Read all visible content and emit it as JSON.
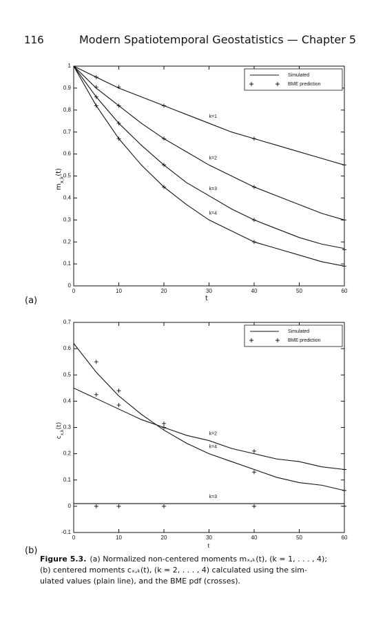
{
  "header": {
    "page_number": "116",
    "title": "Modern Spatiotemporal Geostatistics — Chapter 5"
  },
  "chart_data": [
    {
      "type": "line",
      "panel": "(a)",
      "xlabel": "t",
      "ylabel": {
        "base": "m",
        "sub": "x,k",
        "tail": "(t)"
      },
      "xlim": [
        0,
        60
      ],
      "ylim": [
        0,
        1
      ],
      "xticks": [
        0,
        10,
        20,
        30,
        40,
        50,
        60
      ],
      "yticks": [
        0,
        0.1,
        0.2,
        0.3,
        0.4,
        0.5,
        0.6,
        0.7,
        0.8,
        0.9,
        1
      ],
      "legend": "upper right",
      "series": [
        {
          "name": "Simulated",
          "color": "#111",
          "x": [
            0,
            5,
            10,
            15,
            20,
            25,
            30,
            35,
            40,
            45,
            50,
            55,
            60
          ],
          "curves": [
            {
              "label": "k=1",
              "values": [
                1,
                0.95,
                0.9,
                0.86,
                0.82,
                0.78,
                0.74,
                0.7,
                0.67,
                0.64,
                0.61,
                0.58,
                0.55
              ]
            },
            {
              "label": "k=2",
              "values": [
                1,
                0.9,
                0.82,
                0.74,
                0.67,
                0.61,
                0.55,
                0.5,
                0.45,
                0.41,
                0.37,
                0.33,
                0.3
              ]
            },
            {
              "label": "k=3",
              "values": [
                1,
                0.86,
                0.74,
                0.64,
                0.55,
                0.47,
                0.41,
                0.35,
                0.3,
                0.26,
                0.22,
                0.19,
                0.17
              ]
            },
            {
              "label": "k=4",
              "values": [
                1,
                0.82,
                0.67,
                0.55,
                0.45,
                0.37,
                0.3,
                0.25,
                0.2,
                0.17,
                0.14,
                0.11,
                0.09
              ]
            }
          ]
        },
        {
          "name": "BME prediction",
          "color": "#111",
          "x": [
            5,
            10,
            20,
            40,
            60
          ],
          "curves": [
            {
              "values": [
                0.95,
                0.905,
                0.82,
                0.67,
                0.55
              ]
            },
            {
              "values": [
                0.905,
                0.82,
                0.67,
                0.45,
                0.3
              ]
            },
            {
              "values": [
                0.86,
                0.74,
                0.55,
                0.3,
                0.165
              ]
            },
            {
              "values": [
                0.82,
                0.67,
                0.45,
                0.2,
                0.09
              ]
            }
          ]
        }
      ]
    },
    {
      "type": "line",
      "panel": "(b)",
      "xlabel": "t",
      "ylabel": {
        "base": "c",
        "sub": "x,k",
        "tail": "(t)"
      },
      "xlim": [
        0,
        60
      ],
      "ylim": [
        -0.1,
        0.7
      ],
      "xticks": [
        0,
        10,
        20,
        30,
        40,
        50,
        60
      ],
      "yticks": [
        -0.1,
        0,
        0.1,
        0.2,
        0.3,
        0.4,
        0.5,
        0.6,
        0.7
      ],
      "legend": "upper right",
      "series": [
        {
          "name": "Simulated",
          "color": "#111",
          "x": [
            0,
            5,
            10,
            15,
            20,
            25,
            30,
            35,
            40,
            45,
            50,
            55,
            60
          ],
          "curves": [
            {
              "label": "k=2",
              "values": [
                0.45,
                0.41,
                0.37,
                0.33,
                0.3,
                0.27,
                0.25,
                0.22,
                0.2,
                0.18,
                0.17,
                0.15,
                0.14
              ]
            },
            {
              "label": "k=4",
              "values": [
                0.62,
                0.51,
                0.42,
                0.35,
                0.29,
                0.24,
                0.2,
                0.17,
                0.14,
                0.11,
                0.09,
                0.08,
                0.06
              ]
            },
            {
              "label": "k=3",
              "values": [
                0.01,
                0.01,
                0.01,
                0.01,
                0.01,
                0.01,
                0.01,
                0.01,
                0.01,
                0.01,
                0.01,
                0.01,
                0.01
              ]
            }
          ]
        },
        {
          "name": "BME prediction",
          "color": "#111",
          "x": [
            5,
            10,
            20,
            40,
            60
          ],
          "curves": [
            {
              "values": [
                0.425,
                0.385,
                0.3,
                0.21,
                0.14
              ]
            },
            {
              "values": [
                0.55,
                0.44,
                0.315,
                0.13,
                0.06
              ]
            },
            {
              "values": [
                0,
                0,
                0,
                0,
                0
              ]
            }
          ]
        }
      ]
    }
  ],
  "caption": {
    "label": "Figure 5.3.",
    "lines": [
      "(a) Normalized non-centered moments mₓ,ₖ(t), (k = 1, . . . , 4);",
      "(b) centered moments cₓ,ₖ(t), (k = 2, . . . , 4) calculated using the sim-",
      "ulated values (plain line), and the BME pdf (crosses)."
    ]
  }
}
